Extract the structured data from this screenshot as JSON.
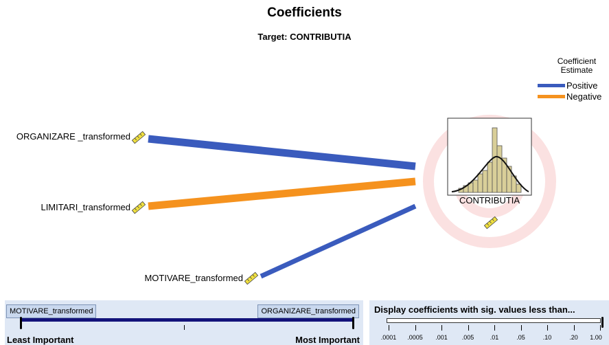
{
  "title": "Coefficients",
  "subtitle": "Target: CONTRIBUTIA",
  "legend": {
    "title_line1": "Coefficient",
    "title_line2": "Estimate",
    "items": [
      {
        "label": "Positive",
        "color": "#3a5bbd"
      },
      {
        "label": "Negative",
        "color": "#f5921e"
      }
    ]
  },
  "target": {
    "label": "CONTRIBUTIA"
  },
  "predictors": [
    {
      "label": "ORGANIZARE _transformed",
      "sign": "positive"
    },
    {
      "label": "LIMITARI_transformed",
      "sign": "negative"
    },
    {
      "label": "MOTIVARE_transformed",
      "sign": "positive"
    }
  ],
  "importance_slider": {
    "min_label_field": "MOTIVARE_transformed",
    "max_label_field": "ORGANIZARE_transformed",
    "left_caption": "Least Important",
    "right_caption": "Most Important"
  },
  "sig_filter": {
    "caption": "Display coefficients with sig. values less than...",
    "ticks": [
      ".0001",
      ".0005",
      ".001",
      ".005",
      ".01",
      ".05",
      ".10",
      ".20",
      "1.00"
    ]
  }
}
